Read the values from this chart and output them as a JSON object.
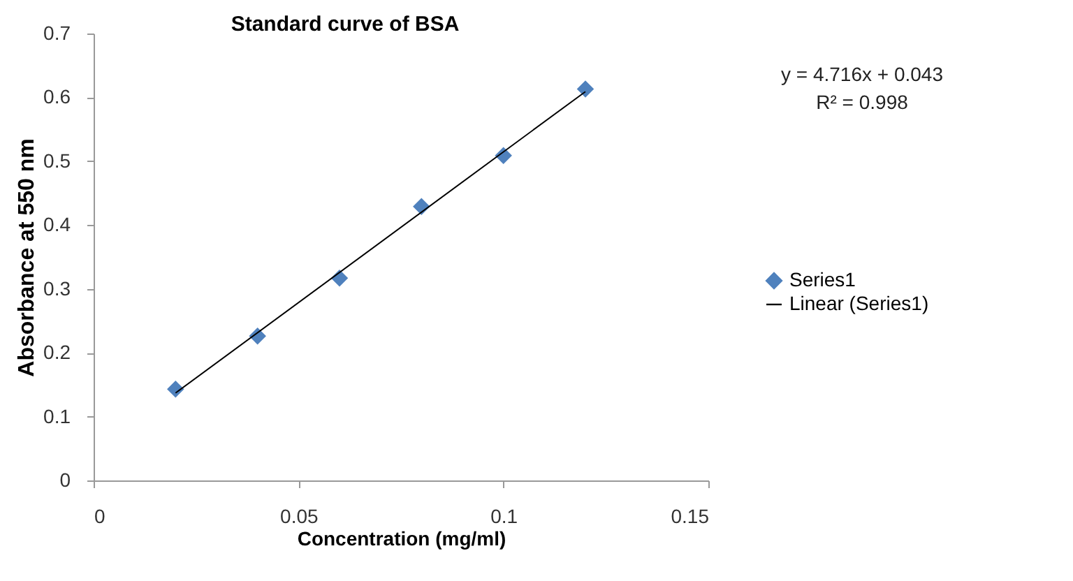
{
  "chart_data": {
    "type": "scatter",
    "title": "Standard curve of BSA",
    "xlabel": "Concentration (mg/ml)",
    "ylabel": "Absorbance at 550 nm",
    "x": [
      0.02,
      0.04,
      0.06,
      0.08,
      0.1,
      0.12
    ],
    "series": [
      {
        "name": "Series1",
        "color": "#4f81bd",
        "marker": "diamond",
        "values": [
          0.143,
          0.226,
          0.317,
          0.429,
          0.509,
          0.613
        ]
      },
      {
        "name": "Linear (Series1)",
        "type": "line",
        "color": "#000000",
        "marker": "none",
        "line_style": "solid",
        "x": [
          0.02,
          0.12
        ],
        "values": [
          0.137,
          0.609
        ]
      }
    ],
    "annotations": [
      "y = 4.716x + 0.043",
      "R² = 0.998"
    ],
    "xlim": [
      0,
      0.15
    ],
    "xticks": [
      0,
      0.05,
      0.1,
      0.15
    ],
    "ylim": [
      0,
      0.7
    ],
    "yticks": [
      0,
      0.1,
      0.2,
      0.3,
      0.4,
      0.5,
      0.6,
      0.7
    ],
    "grid": false,
    "legend": "right"
  }
}
